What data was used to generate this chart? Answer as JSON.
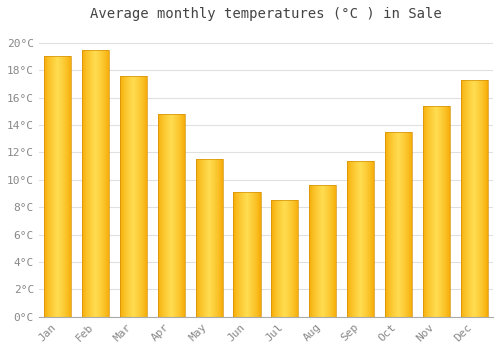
{
  "title": "Average monthly temperatures (°C ) in Sale",
  "months": [
    "Jan",
    "Feb",
    "Mar",
    "Apr",
    "May",
    "Jun",
    "Jul",
    "Aug",
    "Sep",
    "Oct",
    "Nov",
    "Dec"
  ],
  "values": [
    19.0,
    19.5,
    17.6,
    14.8,
    11.5,
    9.1,
    8.5,
    9.6,
    11.4,
    13.5,
    15.4,
    17.3
  ],
  "bar_color_dark": "#F5A800",
  "bar_color_light": "#FFD966",
  "bar_edge_color": "#D4900A",
  "ylim": [
    0,
    21
  ],
  "yticks": [
    0,
    2,
    4,
    6,
    8,
    10,
    12,
    14,
    16,
    18,
    20
  ],
  "ytick_labels": [
    "0°C",
    "2°C",
    "4°C",
    "6°C",
    "8°C",
    "10°C",
    "12°C",
    "14°C",
    "16°C",
    "18°C",
    "20°C"
  ],
  "background_color": "#FFFFFF",
  "grid_color": "#E0E0E0",
  "title_fontsize": 10,
  "tick_fontsize": 8,
  "title_font": "monospace",
  "bar_width": 0.72,
  "n_gradient_slices": 100
}
